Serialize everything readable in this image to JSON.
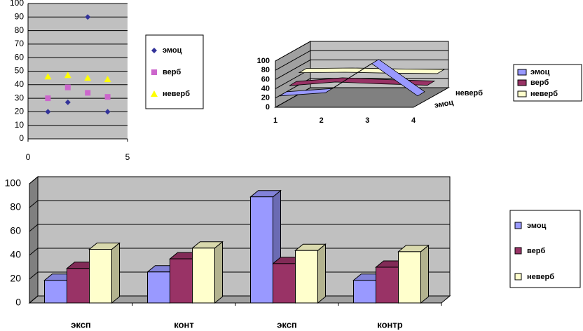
{
  "chart_data": [
    {
      "type": "scatter",
      "x": [
        1,
        2,
        3,
        4
      ],
      "xlim": [
        0,
        5
      ],
      "xticks": [
        0,
        5
      ],
      "ylim": [
        0,
        100
      ],
      "yticks": [
        0,
        10,
        20,
        30,
        40,
        50,
        60,
        70,
        80,
        90,
        100
      ],
      "grid": true,
      "series": [
        {
          "name": "эмоц",
          "color": "#333399",
          "values": [
            20,
            27,
            90,
            20
          ]
        },
        {
          "name": "верб",
          "color": "#cc66cc",
          "values": [
            30,
            38,
            34,
            31
          ]
        },
        {
          "name": "неверб",
          "color": "#ffff00",
          "values": [
            46,
            47,
            45,
            44
          ]
        }
      ]
    },
    {
      "type": "line",
      "three_d": true,
      "categories": [
        "1",
        "2",
        "3",
        "4"
      ],
      "ylim": [
        0,
        100
      ],
      "yticks": [
        0,
        20,
        40,
        60,
        80,
        100
      ],
      "grid": true,
      "series": [
        {
          "name": "эмоц",
          "color": "#9999ff",
          "values": [
            20,
            27,
            90,
            20
          ]
        },
        {
          "name": "верб",
          "color": "#993366",
          "values": [
            30,
            38,
            34,
            31
          ]
        },
        {
          "name": "неверб",
          "color": "#ffffcc",
          "values": [
            46,
            47,
            45,
            44
          ]
        }
      ]
    },
    {
      "type": "bar",
      "three_d": true,
      "categories": [
        "эксп",
        "конт",
        "эксп",
        "контр"
      ],
      "ylim": [
        0,
        100
      ],
      "yticks": [
        0,
        20,
        40,
        60,
        80,
        100
      ],
      "grid": true,
      "series": [
        {
          "name": "эмоц",
          "color": "#9999ff",
          "values": [
            19,
            26,
            89,
            19
          ]
        },
        {
          "name": "верб",
          "color": "#993366",
          "values": [
            29,
            37,
            33,
            30
          ]
        },
        {
          "name": "неверб",
          "color": "#ffffcc",
          "values": [
            45,
            46,
            44,
            43
          ]
        }
      ]
    }
  ]
}
